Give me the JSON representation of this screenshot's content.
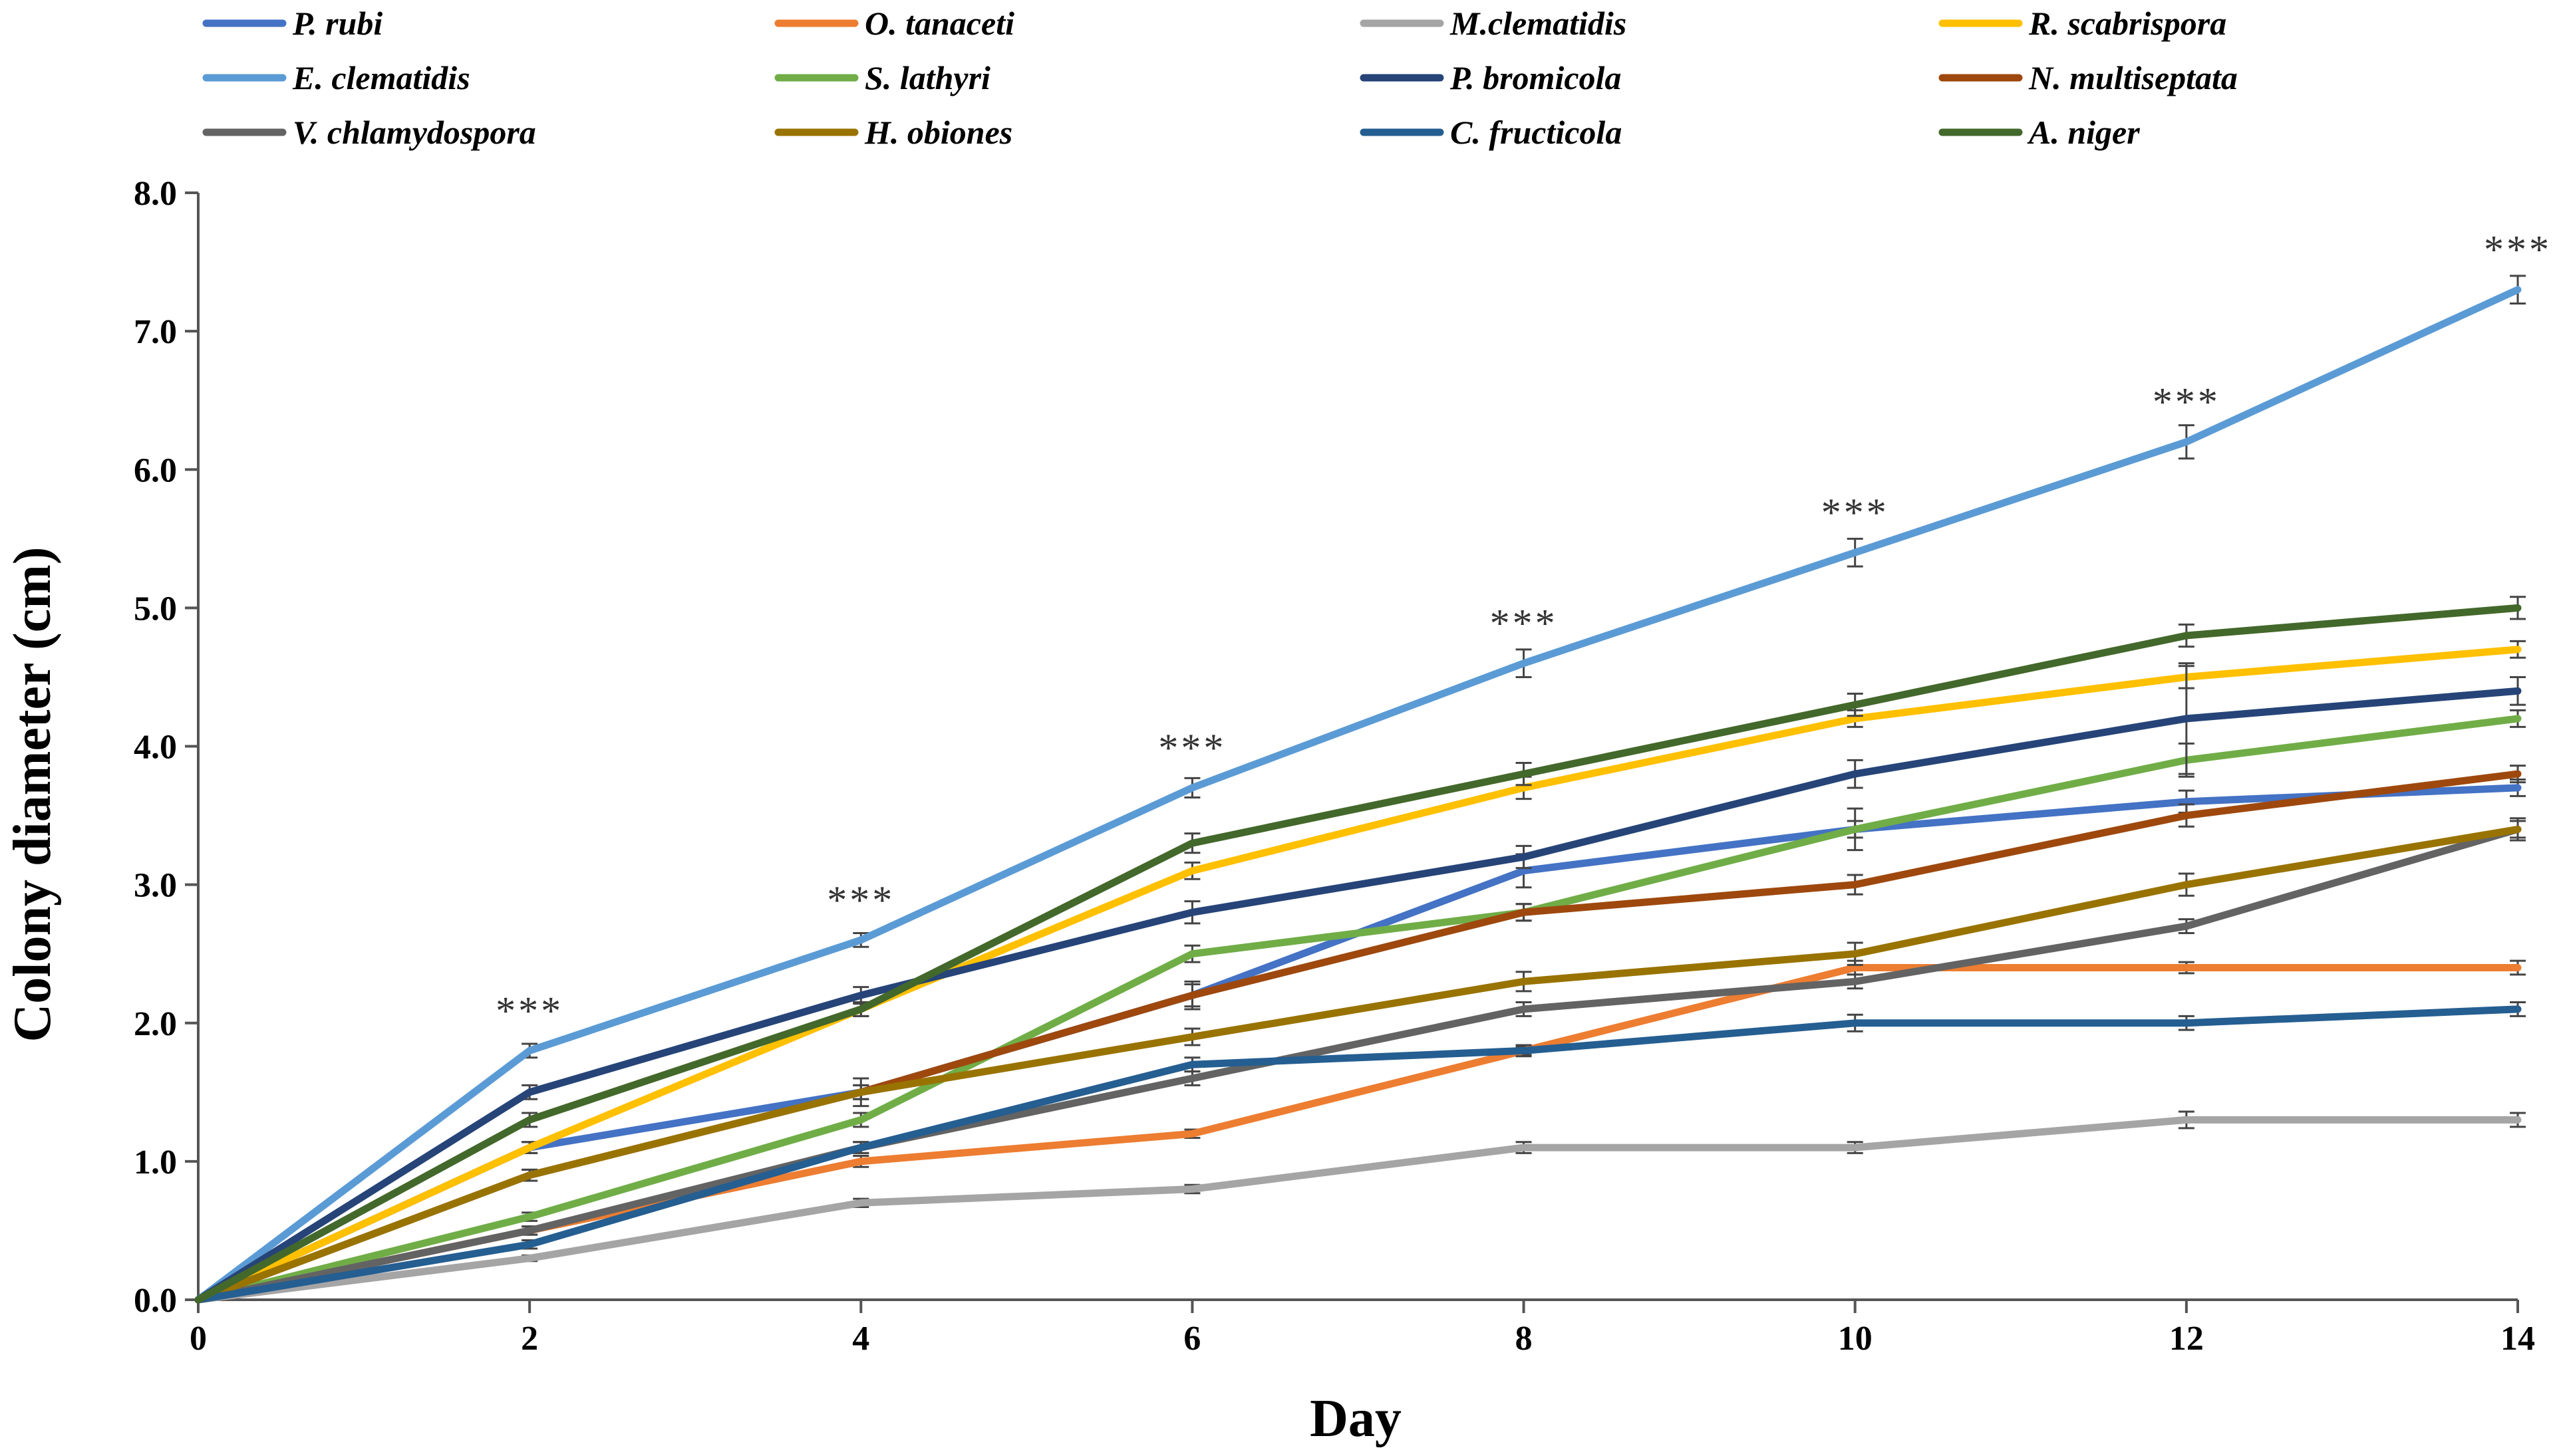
{
  "chart_data": {
    "type": "line",
    "xlabel": "Day",
    "ylabel": "Colony diameter (cm)",
    "xlim": [
      0,
      14
    ],
    "ylim": [
      0,
      8
    ],
    "x": [
      0,
      2,
      4,
      6,
      8,
      10,
      12,
      14
    ],
    "x_tick_labels": [
      "0",
      "2",
      "4",
      "6",
      "8",
      "10",
      "12",
      "14"
    ],
    "y_ticks": [
      0,
      1,
      2,
      3,
      4,
      5,
      6,
      7,
      8
    ],
    "y_tick_labels": [
      "0.0",
      "1.0",
      "2.0",
      "3.0",
      "4.0",
      "5.0",
      "6.0",
      "7.0",
      "8.0"
    ],
    "legend_position": "top",
    "series": [
      {
        "name": "P. rubi",
        "color": "#4472C4",
        "values": [
          0,
          1.1,
          1.5,
          2.2,
          3.1,
          3.4,
          3.6,
          3.7
        ],
        "errors": [
          0,
          0.04,
          0.05,
          0.08,
          0.12,
          0.06,
          0.08,
          0.06
        ]
      },
      {
        "name": "O. tanaceti",
        "color": "#ED7D31",
        "values": [
          0,
          0.5,
          1.0,
          1.2,
          1.8,
          2.4,
          2.4,
          2.4
        ],
        "errors": [
          0,
          0.03,
          0.04,
          0.03,
          0.03,
          0.05,
          0.04,
          0.05
        ]
      },
      {
        "name": "M.clematidis",
        "color": "#A5A5A5",
        "values": [
          0,
          0.3,
          0.7,
          0.8,
          1.1,
          1.1,
          1.3,
          1.3
        ],
        "errors": [
          0,
          0.02,
          0.03,
          0.03,
          0.04,
          0.04,
          0.06,
          0.05
        ]
      },
      {
        "name": "R. scabrispora",
        "color": "#FFC000",
        "values": [
          0,
          1.1,
          2.1,
          3.1,
          3.7,
          4.2,
          4.5,
          4.7
        ],
        "errors": [
          0,
          0.04,
          0.05,
          0.06,
          0.08,
          0.06,
          0.08,
          0.06
        ]
      },
      {
        "name": "E. clematidis",
        "color": "#5B9BD5",
        "values": [
          0,
          1.8,
          2.6,
          3.7,
          4.6,
          5.4,
          6.2,
          7.3
        ],
        "errors": [
          0,
          0.05,
          0.05,
          0.07,
          0.1,
          0.1,
          0.12,
          0.1
        ]
      },
      {
        "name": "S. lathyri",
        "color": "#70AD47",
        "values": [
          0,
          0.6,
          1.3,
          2.5,
          2.8,
          3.4,
          3.9,
          4.2
        ],
        "errors": [
          0,
          0.03,
          0.05,
          0.06,
          0.06,
          0.15,
          0.12,
          0.06
        ]
      },
      {
        "name": "P. bromicola",
        "color": "#264478",
        "values": [
          0,
          1.5,
          2.2,
          2.8,
          3.2,
          3.8,
          4.2,
          4.4
        ],
        "errors": [
          0,
          0.05,
          0.06,
          0.08,
          0.08,
          0.1,
          0.4,
          0.1
        ]
      },
      {
        "name": "N. multiseptata",
        "color": "#9E480E",
        "values": [
          0,
          0.9,
          1.5,
          2.2,
          2.8,
          3.0,
          3.5,
          3.8
        ],
        "errors": [
          0,
          0.04,
          0.05,
          0.1,
          0.06,
          0.07,
          0.08,
          0.06
        ]
      },
      {
        "name": "V. chlamydospora",
        "color": "#636363",
        "values": [
          0,
          0.5,
          1.1,
          1.6,
          2.1,
          2.3,
          2.7,
          3.4
        ],
        "errors": [
          0,
          0.03,
          0.04,
          0.05,
          0.05,
          0.05,
          0.05,
          0.06
        ]
      },
      {
        "name": "H. obiones",
        "color": "#997300",
        "values": [
          0,
          0.9,
          1.5,
          1.9,
          2.3,
          2.5,
          3.0,
          3.4
        ],
        "errors": [
          0,
          0.04,
          0.1,
          0.06,
          0.07,
          0.08,
          0.08,
          0.08
        ]
      },
      {
        "name": "C. fructicola",
        "color": "#255E91",
        "values": [
          0,
          0.4,
          1.1,
          1.7,
          1.8,
          2.0,
          2.0,
          2.1
        ],
        "errors": [
          0,
          0.03,
          0.04,
          0.05,
          0.04,
          0.06,
          0.05,
          0.05
        ]
      },
      {
        "name": "A. niger",
        "color": "#43682B",
        "values": [
          0,
          1.3,
          2.1,
          3.3,
          3.8,
          4.3,
          4.8,
          5.0
        ],
        "errors": [
          0,
          0.05,
          0.05,
          0.07,
          0.08,
          0.08,
          0.08,
          0.08
        ]
      }
    ],
    "annotations": [
      {
        "text": "***",
        "x": 2,
        "y": 1.8
      },
      {
        "text": "***",
        "x": 4,
        "y": 2.6
      },
      {
        "text": "***",
        "x": 6,
        "y": 3.7
      },
      {
        "text": "***",
        "x": 8,
        "y": 4.6
      },
      {
        "text": "***",
        "x": 10,
        "y": 5.4
      },
      {
        "text": "***",
        "x": 12,
        "y": 6.2
      },
      {
        "text": "***",
        "x": 14,
        "y": 7.3
      }
    ]
  }
}
